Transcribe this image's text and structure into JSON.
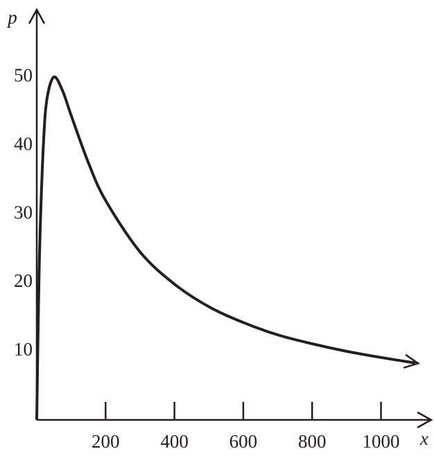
{
  "chart_data": {
    "type": "line",
    "x_label": "x",
    "y_label": "p",
    "x": [
      0,
      5,
      10,
      20,
      30,
      50,
      75,
      100,
      150,
      200,
      300,
      400,
      500,
      600,
      700,
      800,
      900,
      1000,
      1100
    ],
    "series": [
      {
        "color": "#231f20",
        "values": [
          0,
          16.5,
          27.8,
          40.8,
          46.9,
          50,
          48,
          44.4,
          37.5,
          32,
          24.5,
          19.8,
          16.5,
          14.2,
          12.4,
          11.1,
          10.0,
          9.1,
          8.3
        ]
      }
    ],
    "xlim": [
      0,
      1150
    ],
    "ylim": [
      0,
      59
    ],
    "xticks": [
      200,
      400,
      600,
      800,
      1000
    ],
    "yticks": [
      10,
      20,
      30,
      40,
      50
    ]
  }
}
